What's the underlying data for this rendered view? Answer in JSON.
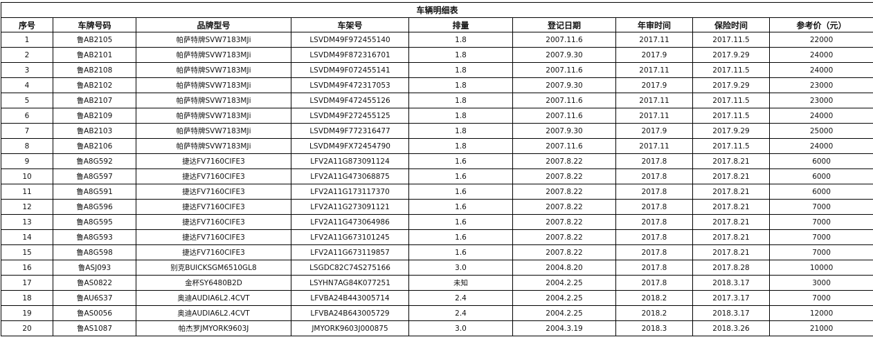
{
  "title": "车辆明细表",
  "columns": [
    "序号",
    "车牌号码",
    "品牌型号",
    "车架号",
    "排量",
    "登记日期",
    "年审时间",
    "保险时间",
    "参考价（元）"
  ],
  "rows": [
    [
      "1",
      "鲁AB2105",
      "帕萨特牌SVW7183MJi",
      "LSVDM49F972455140",
      "1.8",
      "2007.11.6",
      "2017.11",
      "2017.11.5",
      "22000"
    ],
    [
      "2",
      "鲁AB2101",
      "帕萨特牌SVW7183MJi",
      "LSVDM49F872316701",
      "1.8",
      "2007.9.30",
      "2017.9",
      "2017.9.29",
      "24000"
    ],
    [
      "3",
      "鲁AB2108",
      "帕萨特牌SVW7183MJi",
      "LSVDM49F072455141",
      "1.8",
      "2007.11.6",
      "2017.11",
      "2017.11.5",
      "24000"
    ],
    [
      "4",
      "鲁AB2102",
      "帕萨特牌SVW7183MJi",
      "LSVDM49F472317053",
      "1.8",
      "2007.9.30",
      "2017.9",
      "2017.9.29",
      "23000"
    ],
    [
      "5",
      "鲁AB2107",
      "帕萨特牌SVW7183MJi",
      "LSVDM49F472455126",
      "1.8",
      "2007.11.6",
      "2017.11",
      "2017.11.5",
      "23000"
    ],
    [
      "6",
      "鲁AB2109",
      "帕萨特牌SVW7183MJi",
      "LSVDM49F272455125",
      "1.8",
      "2007.11.6",
      "2017.11",
      "2017.11.5",
      "24000"
    ],
    [
      "7",
      "鲁AB2103",
      "帕萨特牌SVW7183MJi",
      "LSVDM49F772316477",
      "1.8",
      "2007.9.30",
      "2017.9",
      "2017.9.29",
      "25000"
    ],
    [
      "8",
      "鲁AB2106",
      "帕萨特牌SVW7183MJi",
      "LSVDM49FX72454790",
      "1.8",
      "2007.11.6",
      "2017.11",
      "2017.11.5",
      "24000"
    ],
    [
      "9",
      "鲁A8G592",
      "捷达FV7160CIFE3",
      "LFV2A11G873091124",
      "1.6",
      "2007.8.22",
      "2017.8",
      "2017.8.21",
      "6000"
    ],
    [
      "10",
      "鲁A8G597",
      "捷达FV7160CIFE3",
      "LFV2A11G473068875",
      "1.6",
      "2007.8.22",
      "2017.8",
      "2017.8.21",
      "6000"
    ],
    [
      "11",
      "鲁A8G591",
      "捷达FV7160CIFE3",
      "LFV2A11G173117370",
      "1.6",
      "2007.8.22",
      "2017.8",
      "2017.8.21",
      "6000"
    ],
    [
      "12",
      "鲁A8G596",
      "捷达FV7160CIFE3",
      "LFV2A11G273091121",
      "1.6",
      "2007.8.22",
      "2017.8",
      "2017.8.21",
      "7000"
    ],
    [
      "13",
      "鲁A8G595",
      "捷达FV7160CIFE3",
      "LFV2A11G473064986",
      "1.6",
      "2007.8.22",
      "2017.8",
      "2017.8.21",
      "7000"
    ],
    [
      "14",
      "鲁A8G593",
      "捷达FV7160CIFE3",
      "LFV2A11G673101245",
      "1.6",
      "2007.8.22",
      "2017.8",
      "2017.8.21",
      "7000"
    ],
    [
      "15",
      "鲁A8G598",
      "捷达FV7160CIFE3",
      "LFV2A11G673119857",
      "1.6",
      "2007.8.22",
      "2017.8",
      "2017.8.21",
      "7000"
    ],
    [
      "16",
      "鲁ASJ093",
      "别克BUICKSGM6510GL8",
      "LSGDC82C74S275166",
      "3.0",
      "2004.8.20",
      "2017.8",
      "2017.8.28",
      "10000"
    ],
    [
      "17",
      "鲁AS0822",
      "金杯SY6480B2D",
      "LSYHN7AG84K077251",
      "未知",
      "2004.2.25",
      "2017.8",
      "2018.3.17",
      "3000"
    ],
    [
      "18",
      "鲁AU6S37",
      "奥迪AUDIA6L2.4CVT",
      "LFVBA24B443005714",
      "2.4",
      "2004.2.25",
      "2018.2",
      "2017.3.17",
      "7000"
    ],
    [
      "19",
      "鲁AS0056",
      "奥迪AUDIA6L2.4CVT",
      "LFVBA24B643005729",
      "2.4",
      "2004.2.25",
      "2018.2",
      "2018.3.17",
      "12000"
    ],
    [
      "20",
      "鲁AS1087",
      "帕杰罗JMYORK9603J",
      "JMYORK9603J000875",
      "3.0",
      "2004.3.19",
      "2018.3",
      "2018.3.26",
      "21000"
    ]
  ]
}
